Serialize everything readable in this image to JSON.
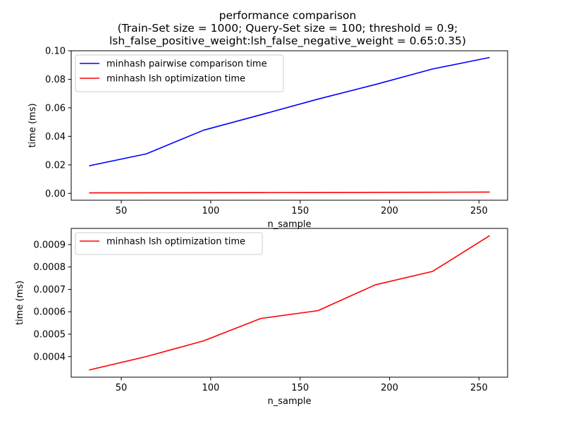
{
  "title": {
    "line1": "performance comparison",
    "line2": "(Train-Set size = 1000; Query-Set size = 100; threshold = 0.9;",
    "line3": "lsh_false_positive_weight:lsh_false_negative_weight = 0.65:0.35)"
  },
  "colors": {
    "pairwise": "#0000ff",
    "lsh": "#ff0000"
  },
  "chart_data": [
    {
      "type": "line",
      "xlabel": "n_sample",
      "ylabel": "time (ms)",
      "xlim": [
        22,
        266
      ],
      "ylim": [
        -0.0048,
        0.1
      ],
      "xticks": [
        50,
        100,
        150,
        200,
        250
      ],
      "xtick_labels": [
        "50",
        "100",
        "150",
        "200",
        "250"
      ],
      "yticks": [
        0.0,
        0.02,
        0.04,
        0.06,
        0.08,
        0.1
      ],
      "ytick_labels": [
        "0.00",
        "0.02",
        "0.04",
        "0.06",
        "0.08",
        "0.10"
      ],
      "legend_position": "upper-left",
      "series": [
        {
          "name": "minhash pairwise comparison time",
          "color": "#0000ff",
          "x": [
            32,
            64,
            96,
            128,
            160,
            192,
            224,
            256
          ],
          "y": [
            0.0193,
            0.0277,
            0.0443,
            0.0551,
            0.0661,
            0.0763,
            0.0872,
            0.0953
          ]
        },
        {
          "name": "minhash lsh optimization time",
          "color": "#ff0000",
          "x": [
            32,
            64,
            96,
            128,
            160,
            192,
            224,
            256
          ],
          "y": [
            0.00034,
            0.0004,
            0.00047,
            0.00057,
            0.000605,
            0.00072,
            0.00078,
            0.00094
          ]
        }
      ]
    },
    {
      "type": "line",
      "xlabel": "n_sample",
      "ylabel": "time (ms)",
      "xlim": [
        22,
        266
      ],
      "ylim": [
        0.000308,
        0.000972
      ],
      "xticks": [
        50,
        100,
        150,
        200,
        250
      ],
      "xtick_labels": [
        "50",
        "100",
        "150",
        "200",
        "250"
      ],
      "yticks": [
        0.0004,
        0.0005,
        0.0006,
        0.0007,
        0.0008,
        0.0009
      ],
      "ytick_labels": [
        "0.0004",
        "0.0005",
        "0.0006",
        "0.0007",
        "0.0008",
        "0.0009"
      ],
      "legend_position": "upper-left",
      "series": [
        {
          "name": "minhash lsh optimization time",
          "color": "#ff0000",
          "x": [
            32,
            64,
            96,
            128,
            160,
            192,
            224,
            256
          ],
          "y": [
            0.00034,
            0.0004,
            0.00047,
            0.00057,
            0.000605,
            0.00072,
            0.00078,
            0.00094
          ]
        }
      ]
    }
  ]
}
